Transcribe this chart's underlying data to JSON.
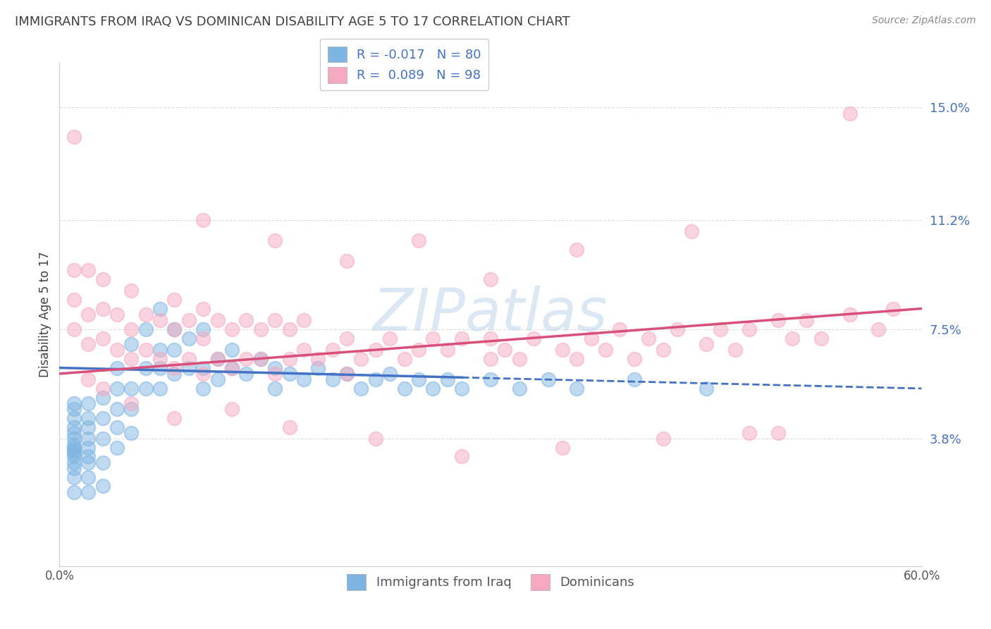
{
  "title": "IMMIGRANTS FROM IRAQ VS DOMINICAN DISABILITY AGE 5 TO 17 CORRELATION CHART",
  "source": "Source: ZipAtlas.com",
  "ylabel": "Disability Age 5 to 17",
  "xlim": [
    0.0,
    0.6
  ],
  "ylim": [
    -0.005,
    0.165
  ],
  "legend_iraq_r": "-0.017",
  "legend_iraq_n": "80",
  "legend_dom_r": "0.089",
  "legend_dom_n": "98",
  "iraq_color": "#7eb4e2",
  "dominican_color": "#f4a9c0",
  "iraq_line_color": "#4472c4",
  "dominican_line_color": "#d94f7a",
  "background_color": "#ffffff",
  "watermark": "ZIPatlas",
  "title_color": "#404040",
  "source_color": "#888888",
  "ylabel_color": "#404040",
  "tick_color": "#4472c4",
  "ytick_vals": [
    0.038,
    0.075,
    0.112,
    0.15
  ],
  "ytick_labels": [
    "3.8%",
    "7.5%",
    "11.2%",
    "15.0%"
  ],
  "iraq_x": [
    0.01,
    0.01,
    0.01,
    0.01,
    0.01,
    0.01,
    0.01,
    0.01,
    0.01,
    0.01,
    0.01,
    0.01,
    0.01,
    0.01,
    0.01,
    0.02,
    0.02,
    0.02,
    0.02,
    0.02,
    0.02,
    0.02,
    0.02,
    0.02,
    0.03,
    0.03,
    0.03,
    0.03,
    0.03,
    0.04,
    0.04,
    0.04,
    0.04,
    0.04,
    0.05,
    0.05,
    0.05,
    0.05,
    0.06,
    0.06,
    0.06,
    0.07,
    0.07,
    0.07,
    0.07,
    0.08,
    0.08,
    0.08,
    0.09,
    0.09,
    0.1,
    0.1,
    0.1,
    0.11,
    0.11,
    0.12,
    0.12,
    0.13,
    0.14,
    0.15,
    0.15,
    0.16,
    0.17,
    0.18,
    0.19,
    0.2,
    0.21,
    0.22,
    0.23,
    0.24,
    0.25,
    0.26,
    0.27,
    0.28,
    0.3,
    0.32,
    0.34,
    0.36,
    0.4,
    0.45
  ],
  "iraq_y": [
    0.02,
    0.025,
    0.028,
    0.03,
    0.032,
    0.033,
    0.034,
    0.035,
    0.036,
    0.038,
    0.04,
    0.042,
    0.045,
    0.048,
    0.05,
    0.02,
    0.025,
    0.03,
    0.032,
    0.035,
    0.038,
    0.042,
    0.045,
    0.05,
    0.022,
    0.03,
    0.038,
    0.045,
    0.052,
    0.035,
    0.042,
    0.048,
    0.055,
    0.062,
    0.04,
    0.048,
    0.055,
    0.07,
    0.055,
    0.062,
    0.075,
    0.055,
    0.062,
    0.068,
    0.082,
    0.06,
    0.068,
    0.075,
    0.062,
    0.072,
    0.055,
    0.062,
    0.075,
    0.058,
    0.065,
    0.062,
    0.068,
    0.06,
    0.065,
    0.055,
    0.062,
    0.06,
    0.058,
    0.062,
    0.058,
    0.06,
    0.055,
    0.058,
    0.06,
    0.055,
    0.058,
    0.055,
    0.058,
    0.055,
    0.058,
    0.055,
    0.058,
    0.055,
    0.058,
    0.055
  ],
  "dom_x": [
    0.01,
    0.01,
    0.01,
    0.02,
    0.02,
    0.02,
    0.03,
    0.03,
    0.03,
    0.04,
    0.04,
    0.05,
    0.05,
    0.05,
    0.06,
    0.06,
    0.07,
    0.07,
    0.08,
    0.08,
    0.08,
    0.09,
    0.09,
    0.1,
    0.1,
    0.1,
    0.11,
    0.11,
    0.12,
    0.12,
    0.13,
    0.13,
    0.14,
    0.14,
    0.15,
    0.15,
    0.16,
    0.16,
    0.17,
    0.17,
    0.18,
    0.19,
    0.2,
    0.2,
    0.21,
    0.22,
    0.23,
    0.24,
    0.25,
    0.26,
    0.27,
    0.28,
    0.3,
    0.3,
    0.31,
    0.32,
    0.33,
    0.35,
    0.36,
    0.37,
    0.38,
    0.39,
    0.4,
    0.41,
    0.42,
    0.43,
    0.45,
    0.46,
    0.47,
    0.48,
    0.5,
    0.51,
    0.52,
    0.53,
    0.55,
    0.57,
    0.58,
    0.55,
    0.48,
    0.42,
    0.35,
    0.28,
    0.22,
    0.16,
    0.12,
    0.08,
    0.05,
    0.03,
    0.02,
    0.01,
    0.1,
    0.15,
    0.2,
    0.25,
    0.3,
    0.36,
    0.44,
    0.5
  ],
  "dom_y": [
    0.075,
    0.085,
    0.095,
    0.07,
    0.08,
    0.095,
    0.072,
    0.082,
    0.092,
    0.068,
    0.08,
    0.065,
    0.075,
    0.088,
    0.068,
    0.08,
    0.065,
    0.078,
    0.062,
    0.075,
    0.085,
    0.065,
    0.078,
    0.06,
    0.072,
    0.082,
    0.065,
    0.078,
    0.062,
    0.075,
    0.065,
    0.078,
    0.065,
    0.075,
    0.06,
    0.078,
    0.065,
    0.075,
    0.068,
    0.078,
    0.065,
    0.068,
    0.06,
    0.072,
    0.065,
    0.068,
    0.072,
    0.065,
    0.068,
    0.072,
    0.068,
    0.072,
    0.065,
    0.072,
    0.068,
    0.065,
    0.072,
    0.068,
    0.065,
    0.072,
    0.068,
    0.075,
    0.065,
    0.072,
    0.068,
    0.075,
    0.07,
    0.075,
    0.068,
    0.075,
    0.078,
    0.072,
    0.078,
    0.072,
    0.08,
    0.075,
    0.082,
    0.148,
    0.04,
    0.038,
    0.035,
    0.032,
    0.038,
    0.042,
    0.048,
    0.045,
    0.05,
    0.055,
    0.058,
    0.14,
    0.112,
    0.105,
    0.098,
    0.105,
    0.092,
    0.102,
    0.108,
    0.04
  ]
}
